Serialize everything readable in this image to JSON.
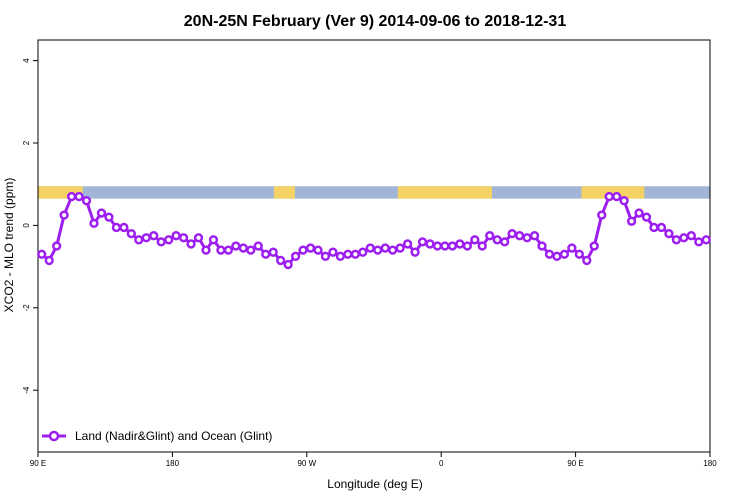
{
  "chart_data": {
    "type": "line",
    "title": "20N-25N February (Ver 9)   2014-09-06 to 2018-12-31",
    "xlabel": "Longitude (deg E)",
    "ylabel": "XCO2 - MLO trend (ppm)",
    "xlim": [
      90,
      540
    ],
    "ylim": [
      -5.5,
      4.5
    ],
    "x_ticks": [
      {
        "value": 90,
        "label": "90 E"
      },
      {
        "value": 180,
        "label": "180"
      },
      {
        "value": 270,
        "label": "90 W"
      },
      {
        "value": 360,
        "label": "0"
      },
      {
        "value": 450,
        "label": "90 E"
      },
      {
        "value": 540,
        "label": "180"
      }
    ],
    "y_ticks": [
      {
        "value": -4,
        "label": "-4"
      },
      {
        "value": -2,
        "label": "-2"
      },
      {
        "value": 0,
        "label": "0"
      },
      {
        "value": 2,
        "label": "2"
      },
      {
        "value": 4,
        "label": "4"
      }
    ],
    "grid": false,
    "legend_position": "bottom-left",
    "land_ocean_band": {
      "y_range": [
        0.65,
        0.95
      ],
      "ocean_color": "#a2b5d6",
      "land_color": "#f5d264",
      "land_segments": [
        [
          90,
          120
        ],
        [
          248,
          262
        ],
        [
          331,
          394
        ],
        [
          454,
          496
        ]
      ]
    },
    "series": [
      {
        "name": "Land (Nadir&Glint) and Ocean (Glint)",
        "color": "#9d1ff0",
        "x": [
          92.5,
          97.5,
          102.5,
          107.5,
          112.5,
          117.5,
          122.5,
          127.5,
          132.5,
          137.5,
          142.5,
          147.5,
          152.5,
          157.5,
          162.5,
          167.5,
          172.5,
          177.5,
          182.5,
          187.5,
          192.5,
          197.5,
          202.5,
          207.5,
          212.5,
          217.5,
          222.5,
          227.5,
          232.5,
          237.5,
          242.5,
          247.5,
          252.5,
          257.5,
          262.5,
          267.5,
          272.5,
          277.5,
          282.5,
          287.5,
          292.5,
          297.5,
          302.5,
          307.5,
          312.5,
          317.5,
          322.5,
          327.5,
          332.5,
          337.5,
          342.5,
          347.5,
          352.5,
          357.5,
          362.5,
          367.5,
          372.5,
          377.5,
          382.5,
          387.5,
          392.5,
          397.5,
          402.5,
          407.5,
          412.5,
          417.5,
          422.5,
          427.5,
          432.5,
          437.5,
          442.5,
          447.5,
          452.5,
          457.5,
          462.5,
          467.5,
          472.5,
          477.5,
          482.5,
          487.5,
          492.5,
          497.5,
          502.5,
          507.5,
          512.5,
          517.5,
          522.5,
          527.5,
          532.5,
          537.5
        ],
        "values": [
          -0.7,
          -0.85,
          -0.5,
          0.25,
          0.7,
          0.7,
          0.6,
          0.05,
          0.3,
          0.2,
          -0.05,
          -0.05,
          -0.2,
          -0.35,
          -0.3,
          -0.25,
          -0.4,
          -0.35,
          -0.25,
          -0.3,
          -0.45,
          -0.3,
          -0.6,
          -0.35,
          -0.6,
          -0.6,
          -0.5,
          -0.55,
          -0.6,
          -0.5,
          -0.7,
          -0.65,
          -0.85,
          -0.95,
          -0.75,
          -0.6,
          -0.55,
          -0.6,
          -0.75,
          -0.65,
          -0.75,
          -0.7,
          -0.7,
          -0.65,
          -0.55,
          -0.6,
          -0.55,
          -0.6,
          -0.55,
          -0.45,
          -0.65,
          -0.4,
          -0.45,
          -0.5,
          -0.5,
          -0.5,
          -0.45,
          -0.5,
          -0.35,
          -0.5,
          -0.25,
          -0.35,
          -0.4,
          -0.2,
          -0.25,
          -0.3,
          -0.25,
          -0.5,
          -0.7,
          -0.75,
          -0.7,
          -0.55,
          -0.7,
          -0.85,
          -0.5,
          0.25,
          0.7,
          0.7,
          0.6,
          0.1,
          0.3,
          0.2,
          -0.05,
          -0.05,
          -0.2,
          -0.35,
          -0.3,
          -0.25,
          -0.4,
          -0.35
        ]
      }
    ]
  }
}
